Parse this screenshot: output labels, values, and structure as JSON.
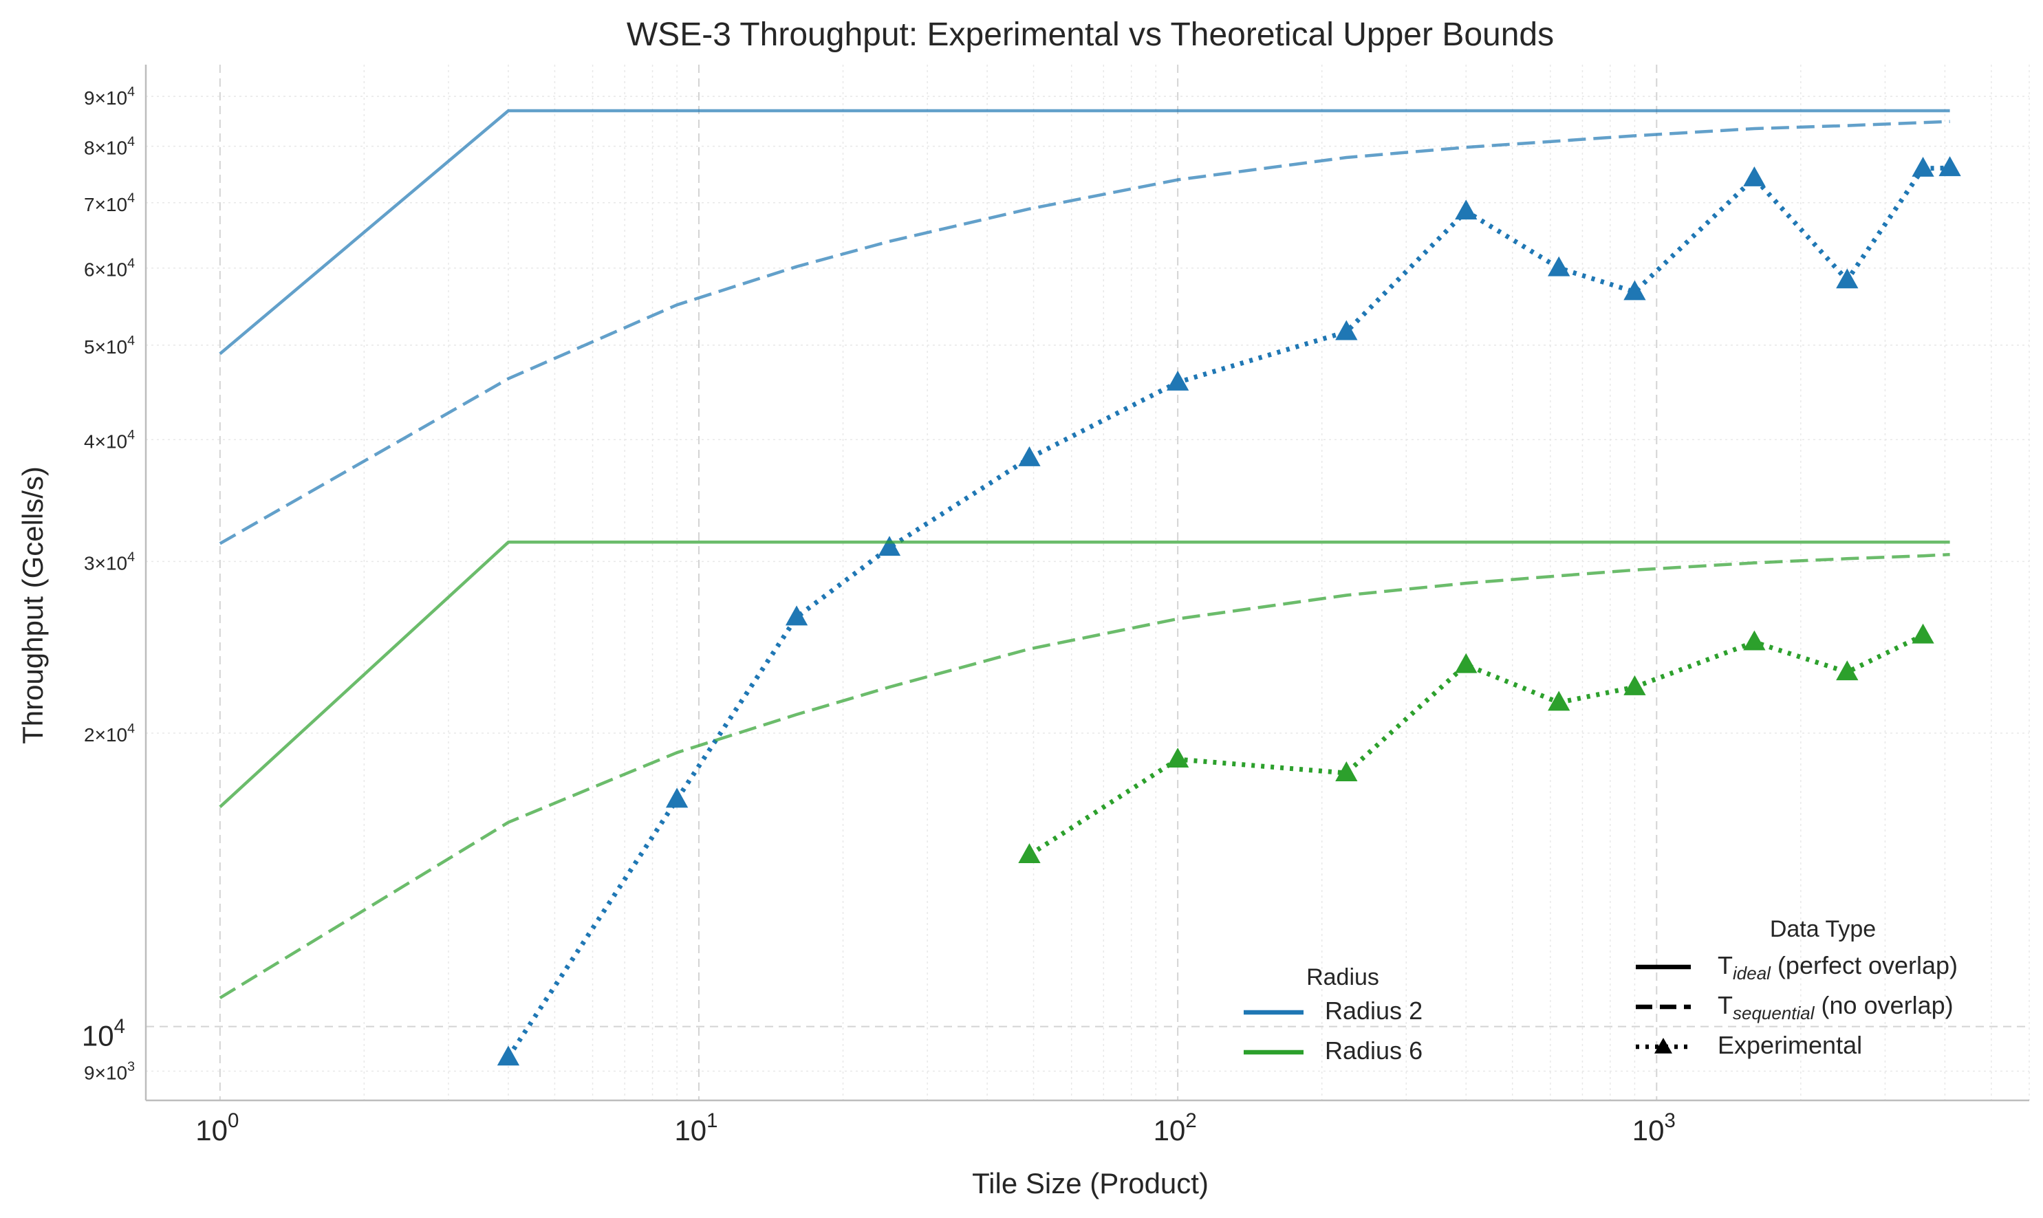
{
  "chart_data": {
    "type": "line",
    "title": "WSE-3 Throughput: Experimental vs Theoretical Upper Bounds",
    "xlabel": "Tile Size (Product)",
    "ylabel": "Throughput (Gcells/s)",
    "xscale": "log",
    "yscale": "log",
    "xlim": [
      0.7,
      6000
    ],
    "ylim": [
      8400,
      97000
    ],
    "grid": true,
    "x_ticks": [
      {
        "value": 1,
        "base": "10",
        "exp": "0"
      },
      {
        "value": 10,
        "base": "10",
        "exp": "1"
      },
      {
        "value": 100,
        "base": "10",
        "exp": "2"
      },
      {
        "value": 1000,
        "base": "10",
        "exp": "3"
      }
    ],
    "y_ticks_major": [
      {
        "value": 10000,
        "base": "10",
        "exp": "4"
      }
    ],
    "y_ticks_minor": [
      {
        "value": 9000,
        "mant": "9×10",
        "exp": "3"
      },
      {
        "value": 20000,
        "mant": "2×10",
        "exp": "4"
      },
      {
        "value": 30000,
        "mant": "3×10",
        "exp": "4"
      },
      {
        "value": 40000,
        "mant": "4×10",
        "exp": "4"
      },
      {
        "value": 50000,
        "mant": "5×10",
        "exp": "4"
      },
      {
        "value": 60000,
        "mant": "6×10",
        "exp": "4"
      },
      {
        "value": 70000,
        "mant": "7×10",
        "exp": "4"
      },
      {
        "value": 80000,
        "mant": "8×10",
        "exp": "4"
      },
      {
        "value": 90000,
        "mant": "9×10",
        "exp": "4"
      }
    ],
    "colors": {
      "radius2": "#1f77b4",
      "radius6": "#2ca02c"
    },
    "series": [
      {
        "radius": "Radius 2",
        "kind": "ideal",
        "color": "#1f77b4",
        "x": [
          1,
          4,
          4096
        ],
        "y": [
          49000,
          87000,
          87000
        ]
      },
      {
        "radius": "Radius 2",
        "kind": "sequential",
        "color": "#1f77b4",
        "x": [
          1,
          4,
          9,
          16,
          25,
          49,
          100,
          225,
          400,
          625,
          900,
          1600,
          2500,
          3600,
          4096
        ],
        "y": [
          31300,
          46200,
          55000,
          60200,
          63900,
          69000,
          73900,
          77900,
          79800,
          81000,
          82000,
          83400,
          84000,
          84600,
          84800
        ]
      },
      {
        "radius": "Radius 2",
        "kind": "experimental",
        "color": "#1f77b4",
        "x": [
          4,
          9,
          16,
          25,
          49,
          100,
          225,
          400,
          625,
          900,
          1600,
          2500,
          3600,
          4096
        ],
        "y": [
          9300,
          17100,
          26300,
          31000,
          38300,
          45800,
          51600,
          68600,
          60000,
          56700,
          74200,
          58300,
          75900,
          76000
        ]
      },
      {
        "radius": "Radius 6",
        "kind": "ideal",
        "color": "#2ca02c",
        "x": [
          1,
          4,
          4096
        ],
        "y": [
          16800,
          31400,
          31400
        ]
      },
      {
        "radius": "Radius 6",
        "kind": "sequential",
        "color": "#2ca02c",
        "x": [
          1,
          4,
          9,
          16,
          25,
          49,
          100,
          225,
          400,
          625,
          900,
          1600,
          2500,
          3600,
          4096
        ],
        "y": [
          10700,
          16200,
          19100,
          20900,
          22300,
          24400,
          26200,
          27700,
          28500,
          29000,
          29400,
          29900,
          30200,
          30400,
          30500
        ]
      },
      {
        "radius": "Radius 6",
        "kind": "experimental",
        "color": "#2ca02c",
        "x": [
          49,
          100,
          225,
          400,
          625,
          900,
          1600,
          2500,
          3600
        ],
        "y": [
          15000,
          18800,
          18200,
          23500,
          21500,
          22300,
          24800,
          23100,
          25200
        ]
      }
    ],
    "legend_radius": {
      "title": "Radius",
      "placement": "lower-center",
      "entries": [
        {
          "label": "Radius 2",
          "color": "#1f77b4"
        },
        {
          "label": "Radius 6",
          "color": "#2ca02c"
        }
      ]
    },
    "legend_type": {
      "title": "Data Type",
      "placement": "lower-right",
      "entries": [
        {
          "style": "solid",
          "prefix": "T",
          "sub": "ideal",
          "suffix": " (perfect overlap)"
        },
        {
          "style": "dashed",
          "prefix": "T",
          "sub": "sequential",
          "suffix": " (no overlap)"
        },
        {
          "style": "dotted",
          "prefix": "",
          "sub": "",
          "suffix": "Experimental"
        }
      ]
    }
  }
}
